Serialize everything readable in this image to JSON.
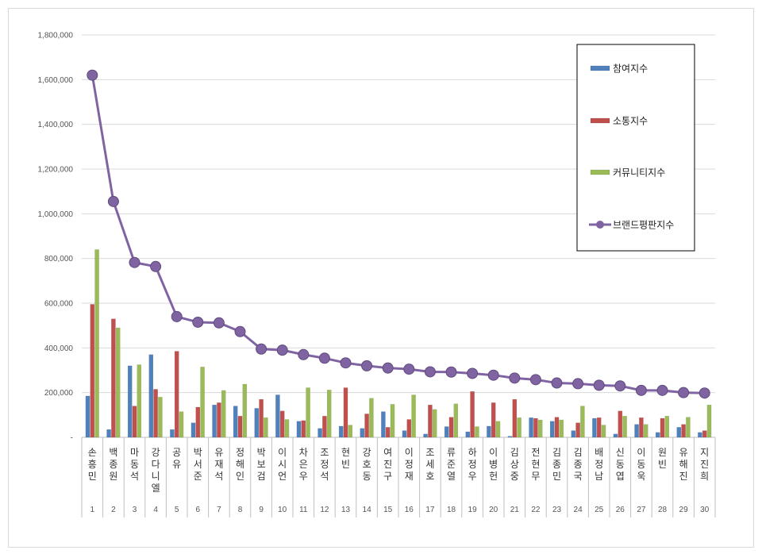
{
  "chart_data": {
    "type": "bar+line",
    "title": "",
    "xlabel": "",
    "ylabel": "",
    "ylim": [
      0,
      1800000
    ],
    "ytick_values": [
      0,
      200000,
      400000,
      600000,
      800000,
      1000000,
      1200000,
      1400000,
      1600000,
      1800000
    ],
    "ytick_labels": [
      "-",
      "200,000",
      "400,000",
      "600,000",
      "800,000",
      "1,000,000",
      "1,200,000",
      "1,400,000",
      "1,600,000",
      "1,800,000"
    ],
    "grid": true,
    "legend_position": "top-right",
    "categories": [
      "손흥민",
      "백종원",
      "마동석",
      "강다니엘",
      "공유",
      "박서준",
      "유재석",
      "정해인",
      "박보검",
      "이시언",
      "차은우",
      "조정석",
      "현빈",
      "강호동",
      "여진구",
      "이정재",
      "조세호",
      "류준열",
      "하정우",
      "이병헌",
      "김상중",
      "전현무",
      "김종민",
      "김종국",
      "배정남",
      "신동엽",
      "이동욱",
      "원빈",
      "유해진",
      "지진희"
    ],
    "ranks": [
      "1",
      "2",
      "3",
      "4",
      "5",
      "6",
      "7",
      "8",
      "9",
      "10",
      "11",
      "12",
      "13",
      "14",
      "15",
      "16",
      "17",
      "18",
      "19",
      "20",
      "21",
      "22",
      "23",
      "24",
      "25",
      "26",
      "27",
      "28",
      "29",
      "30"
    ],
    "series": [
      {
        "name": "참여지수",
        "kind": "bar",
        "color": "#4f81bd",
        "values": [
          185000,
          35000,
          320000,
          370000,
          35000,
          65000,
          145000,
          140000,
          130000,
          190000,
          72000,
          40000,
          50000,
          40000,
          115000,
          30000,
          15000,
          48000,
          25000,
          50000,
          5000,
          88000,
          72000,
          30000,
          85000,
          15000,
          58000,
          22000,
          45000,
          22000
        ]
      },
      {
        "name": "소통지수",
        "kind": "bar",
        "color": "#c0504d",
        "values": [
          595000,
          530000,
          140000,
          215000,
          385000,
          135000,
          155000,
          95000,
          170000,
          118000,
          75000,
          95000,
          222000,
          105000,
          45000,
          80000,
          145000,
          90000,
          205000,
          155000,
          170000,
          85000,
          90000,
          65000,
          88000,
          118000,
          88000,
          85000,
          58000,
          30000
        ]
      },
      {
        "name": "커뮤니티지수",
        "kind": "bar",
        "color": "#9bbb59",
        "values": [
          840000,
          490000,
          325000,
          180000,
          115000,
          315000,
          210000,
          238000,
          88000,
          80000,
          222000,
          212000,
          55000,
          175000,
          148000,
          190000,
          125000,
          150000,
          48000,
          72000,
          88000,
          78000,
          78000,
          140000,
          55000,
          95000,
          58000,
          95000,
          90000,
          145000
        ]
      },
      {
        "name": "브랜드평판지수",
        "kind": "line",
        "color": "#8064a2",
        "values": [
          1620000,
          1055000,
          782000,
          764000,
          540000,
          515000,
          512000,
          473000,
          395000,
          390000,
          370000,
          354000,
          333000,
          320000,
          310000,
          305000,
          293000,
          292000,
          286000,
          278000,
          265000,
          258000,
          243000,
          240000,
          233000,
          230000,
          210000,
          210000,
          200000,
          198000
        ]
      }
    ]
  }
}
